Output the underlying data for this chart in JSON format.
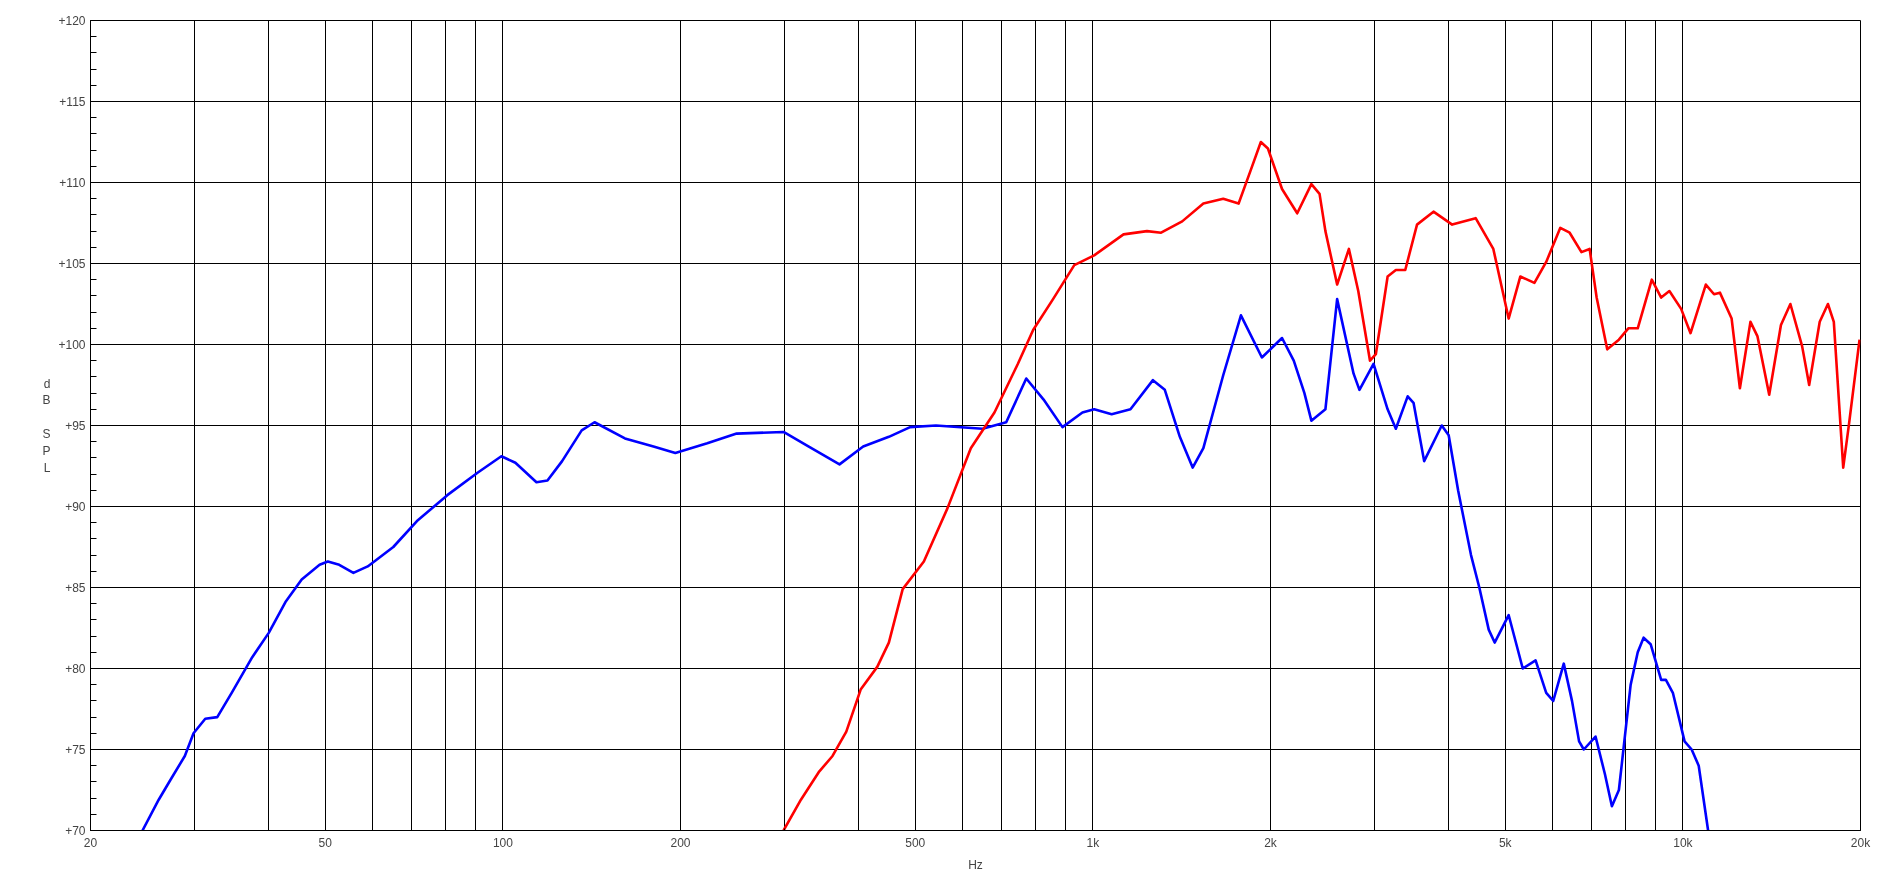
{
  "chart_data": {
    "type": "line",
    "xlabel": "Hz",
    "ylabel": "dB SPL",
    "log": "x",
    "grid": true,
    "marker": "none",
    "line_style": "solid",
    "xlim": [
      20,
      20000
    ],
    "ylim": [
      70,
      120
    ],
    "xticks": [
      20,
      {
        "value": 30,
        "label": null
      },
      {
        "value": 40,
        "label": null
      },
      50,
      {
        "value": 60,
        "label": null
      },
      {
        "value": 70,
        "label": null
      },
      {
        "value": 80,
        "label": null
      },
      {
        "value": 90,
        "label": null
      },
      100,
      200,
      {
        "value": 300,
        "label": null
      },
      {
        "value": 400,
        "label": null
      },
      500,
      {
        "value": 600,
        "label": null
      },
      {
        "value": 700,
        "label": null
      },
      {
        "value": 800,
        "label": null
      },
      {
        "value": 900,
        "label": null
      },
      {
        "value": 1000,
        "label": "1k"
      },
      {
        "value": 2000,
        "label": "2k"
      },
      {
        "value": 3000,
        "label": null
      },
      {
        "value": 4000,
        "label": null
      },
      {
        "value": 5000,
        "label": "5k"
      },
      {
        "value": 6000,
        "label": null
      },
      {
        "value": 7000,
        "label": null
      },
      {
        "value": 8000,
        "label": null
      },
      {
        "value": 9000,
        "label": null
      },
      {
        "value": 10000,
        "label": "10k"
      },
      {
        "value": 20000,
        "label": "20k"
      }
    ],
    "yticks": [
      {
        "value": 70,
        "label": "+70"
      },
      {
        "value": 75,
        "label": "+75"
      },
      {
        "value": 80,
        "label": "+80"
      },
      {
        "value": 85,
        "label": "+85"
      },
      {
        "value": 90,
        "label": "+90"
      },
      {
        "value": 95,
        "label": "+95"
      },
      {
        "value": 100,
        "label": "+100"
      },
      {
        "value": 105,
        "label": "+105"
      },
      {
        "value": 110,
        "label": "+110"
      },
      {
        "value": 115,
        "label": "+115"
      },
      {
        "value": 120,
        "label": "+120"
      }
    ],
    "series": [
      {
        "color": "#0000ff",
        "x": [
          24.5,
          26.1,
          27.3,
          28.9,
          29.9,
          31.3,
          32.8,
          34.7,
          37.6,
          40.1,
          42.8,
          45.6,
          48.9,
          50.5,
          52.8,
          55.8,
          59.0,
          65.2,
          71.5,
          80.5,
          90.7,
          99.4,
          105,
          114,
          119,
          126,
          136,
          143,
          161,
          180,
          196,
          222,
          249,
          299,
          330,
          372,
          408,
          451,
          490,
          542,
          650,
          713,
          771,
          825,
          888,
          960,
          1005,
          1076,
          1158,
          1264,
          1324,
          1404,
          1476,
          1539,
          1663,
          1782,
          1934,
          2092,
          2190,
          2283,
          2346,
          2478,
          2594,
          2766,
          2830,
          2990,
          3159,
          3262,
          3416,
          3495,
          3643,
          3902,
          4009,
          4159,
          4374,
          4518,
          4687,
          4797,
          5066,
          5353,
          5628,
          5866,
          6029,
          6282,
          6487,
          6669,
          6793,
          7111,
          7374,
          7580,
          7790,
          8156,
          8384,
          8578,
          8817,
          9187,
          9358,
          9616,
          10066,
          10348,
          10637,
          11034
        ],
        "values": [
          70,
          71.9,
          73.1,
          74.6,
          76,
          76.9,
          77,
          78.5,
          80.7,
          82.2,
          84.1,
          85.5,
          86.4,
          86.6,
          86.4,
          85.9,
          86.3,
          87.5,
          89.1,
          90.7,
          92.1,
          93.1,
          92.7,
          91.5,
          91.6,
          92.8,
          94.7,
          95.2,
          94.2,
          93.7,
          93.3,
          93.9,
          94.5,
          94.6,
          93.7,
          92.6,
          93.7,
          94.3,
          94.9,
          95,
          94.8,
          95.2,
          97.9,
          96.6,
          94.9,
          95.8,
          96,
          95.7,
          96,
          97.8,
          97.2,
          94.3,
          92.4,
          93.6,
          98.1,
          101.8,
          99.2,
          100.4,
          99,
          97,
          95.3,
          96,
          102.8,
          98.2,
          97.2,
          98.8,
          96,
          94.8,
          96.8,
          96.4,
          92.8,
          95,
          94.4,
          91,
          87,
          85,
          82.4,
          81.6,
          83.3,
          80,
          80.5,
          78.5,
          78,
          80.3,
          78,
          75.5,
          75,
          75.8,
          73.5,
          71.5,
          72.5,
          79,
          81,
          81.9,
          81.5,
          79.3,
          79.3,
          78.5,
          75.5,
          75,
          74,
          70
        ]
      },
      {
        "color": "#ff0000",
        "x": [
          299,
          320,
          343,
          362,
          382,
          404,
          431,
          451,
          476,
          517,
          567,
          621,
          681,
          746,
          792,
          856,
          930,
          1005,
          1127,
          1235,
          1305,
          1417,
          1539,
          1663,
          1766,
          1849,
          1926,
          1980,
          2092,
          2220,
          2346,
          2422,
          2478,
          2594,
          2716,
          2817,
          2949,
          3017,
          3159,
          3262,
          3384,
          3543,
          3778,
          4064,
          4454,
          4772,
          5066,
          5303,
          5602,
          5866,
          6198,
          6428,
          6730,
          6949,
          7142,
          7443,
          7790,
          8082,
          8384,
          8857,
          9187,
          9487,
          9932,
          10303,
          10936,
          11292,
          11554,
          12095,
          12492,
          13018,
          13380,
          14006,
          14662,
          15212,
          15924,
          16370,
          17058,
          17612,
          18022,
          18696,
          19124,
          19926
        ],
        "values": [
          70,
          71.9,
          73.6,
          74.6,
          76.1,
          78.7,
          80.1,
          81.6,
          84.9,
          86.6,
          89.9,
          93.6,
          95.8,
          98.8,
          100.9,
          102.8,
          104.9,
          105.5,
          106.8,
          107,
          106.9,
          107.6,
          108.7,
          109,
          108.7,
          110.7,
          112.5,
          112.1,
          109.6,
          108.1,
          109.9,
          109.3,
          107,
          103.7,
          105.9,
          103.3,
          99,
          99.4,
          104.2,
          104.6,
          104.6,
          107.4,
          108.2,
          107.4,
          107.8,
          105.9,
          101.6,
          104.2,
          103.8,
          105.1,
          107.2,
          106.9,
          105.7,
          105.9,
          102.9,
          99.7,
          100.3,
          101,
          101,
          104,
          102.9,
          103.3,
          102.2,
          100.7,
          103.7,
          103.1,
          103.2,
          101.6,
          97.3,
          101.4,
          100.5,
          96.9,
          101.2,
          102.5,
          99.9,
          97.5,
          101.4,
          102.5,
          101.4,
          92.4,
          95.1,
          100.3
        ]
      }
    ]
  }
}
